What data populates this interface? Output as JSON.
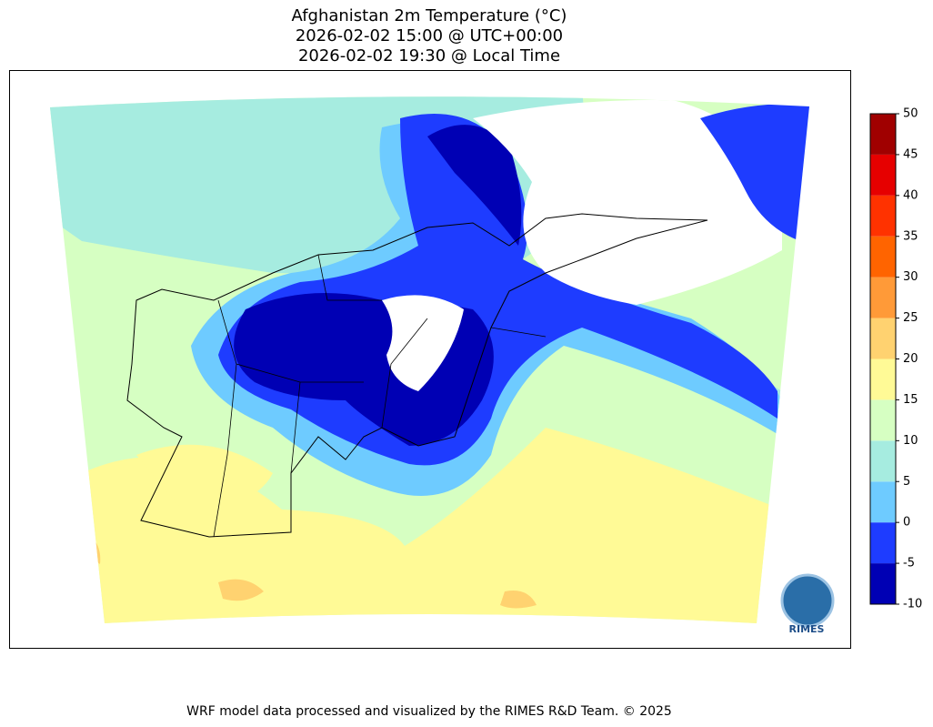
{
  "map_data": {
    "title": [
      "Afghanistan 2m Temperature (°C)",
      "2026-02-02 15:00 @ UTC+00:00",
      "2026-02-02 19:30 @ Local Time"
    ],
    "colorbar": {
      "ticks": [
        -10,
        -5,
        0,
        5,
        10,
        15,
        20,
        25,
        30,
        35,
        40,
        45,
        50
      ],
      "colors": [
        "#0000b4",
        "#1e3cff",
        "#6ecbff",
        "#a6ece0",
        "#d6ffc2",
        "#fffa96",
        "#ffd270",
        "#ff9a38",
        "#ff6400",
        "#ff3200",
        "#e60000",
        "#a00000"
      ]
    },
    "logo_label": "RIMES",
    "footer": "WRF model data processed and visualized by the RIMES R&D Team. © 2025"
  }
}
